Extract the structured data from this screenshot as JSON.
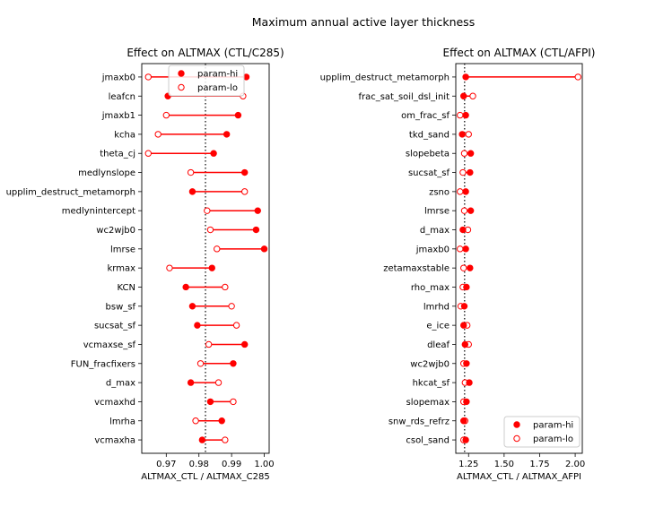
{
  "figure": {
    "title": "Maximum annual active layer thickness"
  },
  "chart_data": [
    {
      "type": "dumbbell",
      "title": "Effect on ALTMAX (CTL/C285)",
      "xlabel": "ALTMAX_CTL / ALTMAX_C285",
      "ylabel": "",
      "xlim": [
        0.9625,
        1.0015
      ],
      "xticks": [
        0.97,
        0.98,
        0.99,
        1.0
      ],
      "xtick_labels": [
        "0.97",
        "0.98",
        "0.99",
        "1.00"
      ],
      "ref_line": 0.982,
      "legend_position": "upper center",
      "legend_entries": [
        "param-hi",
        "param-lo"
      ],
      "color": "#ff0000",
      "categories": [
        "jmaxb0",
        "leafcn",
        "jmaxb1",
        "kcha",
        "theta_cj",
        "medlynslope",
        "upplim_destruct_metamorph",
        "medlynintercept",
        "wc2wjb0",
        "lmrse",
        "krmax",
        "KCN",
        "bsw_sf",
        "sucsat_sf",
        "vcmaxse_sf",
        "FUN_fracfixers",
        "d_max",
        "vcmaxhd",
        "lmrha",
        "vcmaxha"
      ],
      "series": [
        {
          "name": "param-hi",
          "values": [
            0.9945,
            0.9705,
            0.992,
            0.9885,
            0.9845,
            0.994,
            0.978,
            0.998,
            0.9975,
            1.0,
            0.984,
            0.976,
            0.978,
            0.9795,
            0.994,
            0.9905,
            0.9775,
            0.9835,
            0.987,
            0.981
          ]
        },
        {
          "name": "param-lo",
          "values": [
            0.9645,
            0.9935,
            0.97,
            0.9675,
            0.9645,
            0.9775,
            0.994,
            0.9825,
            0.9835,
            0.9855,
            0.971,
            0.988,
            0.99,
            0.9915,
            0.983,
            0.9805,
            0.986,
            0.9905,
            0.979,
            0.988
          ]
        }
      ]
    },
    {
      "type": "dumbbell",
      "title": "Effect on ALTMAX (CTL/AFPI)",
      "xlabel": "ALTMAX_CTL / ALTMAX_AFPI",
      "ylabel": "",
      "xlim": [
        1.16,
        2.05
      ],
      "xticks": [
        1.25,
        1.5,
        1.75,
        2.0
      ],
      "xtick_labels": [
        "1.25",
        "1.50",
        "1.75",
        "2.00"
      ],
      "ref_line": 1.222,
      "legend_position": "lower right",
      "legend_entries": [
        "param-hi",
        "param-lo"
      ],
      "color": "#ff0000",
      "categories": [
        "upplim_destruct_metamorph",
        "frac_sat_soil_dsl_init",
        "om_frac_sf",
        "tkd_sand",
        "slopebeta",
        "sucsat_sf",
        "zsno",
        "lmrse",
        "d_max",
        "jmaxb0",
        "zetamaxstable",
        "rho_max",
        "lmrhd",
        "e_ice",
        "dleaf",
        "wc2wjb0",
        "hkcat_sf",
        "slopemax",
        "snw_rds_refrz",
        "csol_sand"
      ],
      "series": [
        {
          "name": "param-hi",
          "values": [
            1.23,
            1.215,
            1.23,
            1.205,
            1.265,
            1.26,
            1.23,
            1.265,
            1.21,
            1.23,
            1.26,
            1.235,
            1.22,
            1.215,
            1.225,
            1.235,
            1.255,
            1.235,
            1.215,
            1.23
          ]
        },
        {
          "name": "param-lo",
          "values": [
            2.02,
            1.28,
            1.19,
            1.25,
            1.22,
            1.21,
            1.19,
            1.22,
            1.245,
            1.19,
            1.215,
            1.21,
            1.195,
            1.24,
            1.25,
            1.215,
            1.225,
            1.215,
            1.225,
            1.215
          ]
        }
      ]
    }
  ]
}
